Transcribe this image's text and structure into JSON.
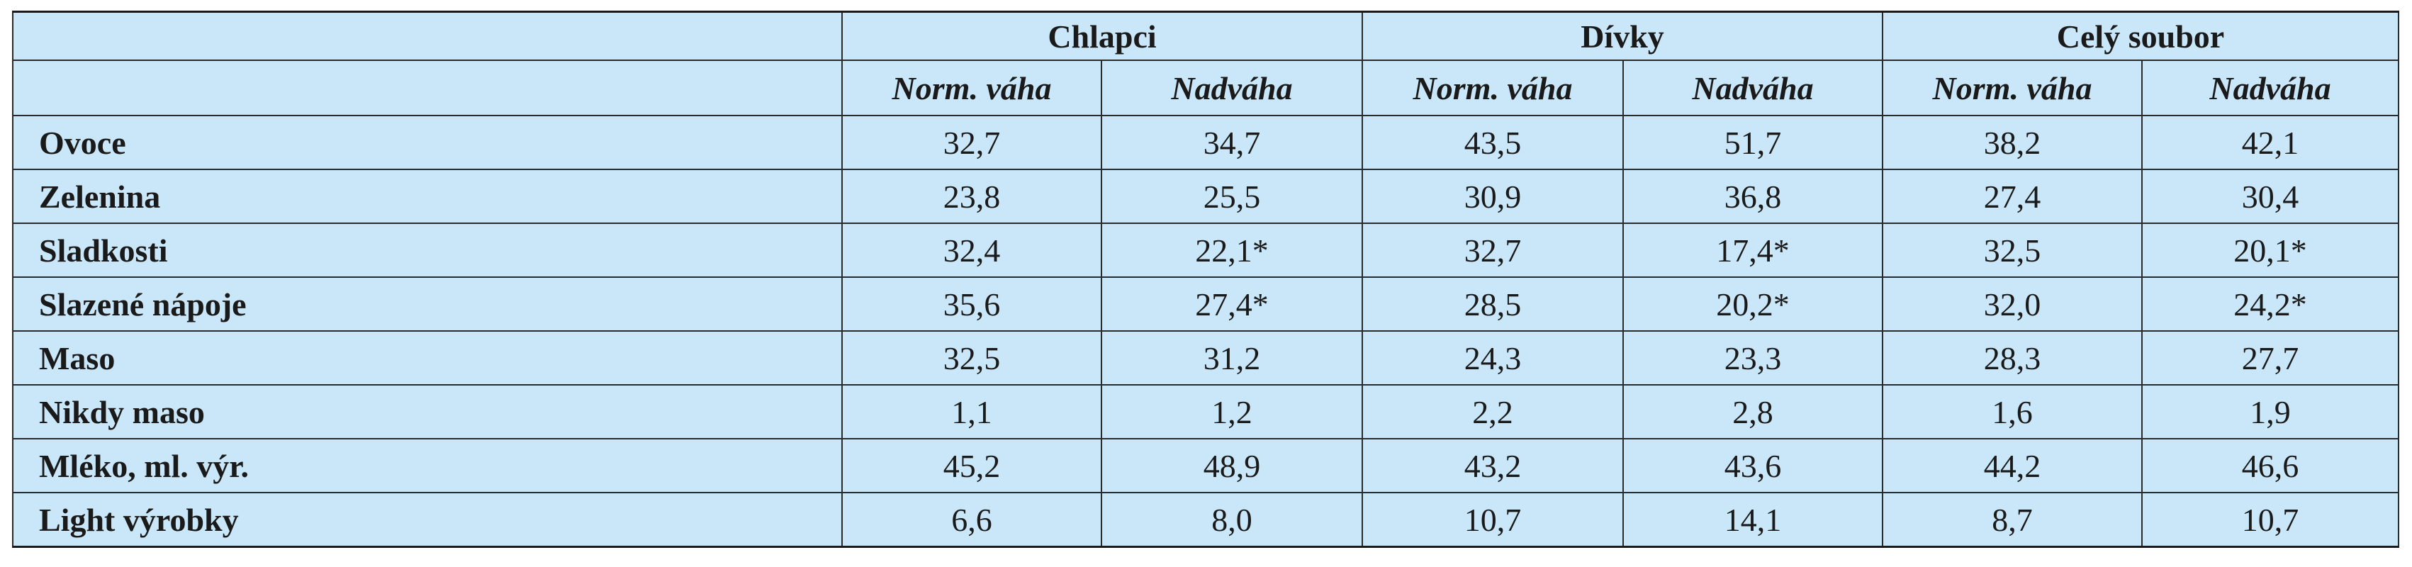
{
  "table": {
    "groups": [
      "Chlapci",
      "Dívky",
      "Celý soubor"
    ],
    "subheaders": [
      "Norm. váha",
      "Nadváha",
      "Norm. váha",
      "Nadváha",
      "Norm. váha",
      "Nadváha"
    ],
    "rows": [
      {
        "label": "Ovoce",
        "values": [
          "32,7",
          "34,7",
          "43,5",
          "51,7",
          "38,2",
          "42,1"
        ]
      },
      {
        "label": "Zelenina",
        "values": [
          "23,8",
          "25,5",
          "30,9",
          "36,8",
          "27,4",
          "30,4"
        ]
      },
      {
        "label": "Sladkosti",
        "values": [
          "32,4",
          "22,1*",
          "32,7",
          "17,4*",
          "32,5",
          "20,1*"
        ]
      },
      {
        "label": "Slazené nápoje",
        "values": [
          "35,6",
          "27,4*",
          "28,5",
          "20,2*",
          "32,0",
          "24,2*"
        ]
      },
      {
        "label": "Maso",
        "values": [
          "32,5",
          "31,2",
          "24,3",
          "23,3",
          "28,3",
          "27,7"
        ]
      },
      {
        "label": "Nikdy maso",
        "values": [
          "1,1",
          "1,2",
          "2,2",
          "2,8",
          "1,6",
          "1,9"
        ]
      },
      {
        "label": "Mléko, ml. výr.",
        "values": [
          "45,2",
          "48,9",
          "43,2",
          "43,6",
          "44,2",
          "46,6"
        ]
      },
      {
        "label": "Light výrobky",
        "values": [
          "6,6",
          "8,0",
          "10,7",
          "14,1",
          "8,7",
          "10,7"
        ]
      }
    ]
  }
}
